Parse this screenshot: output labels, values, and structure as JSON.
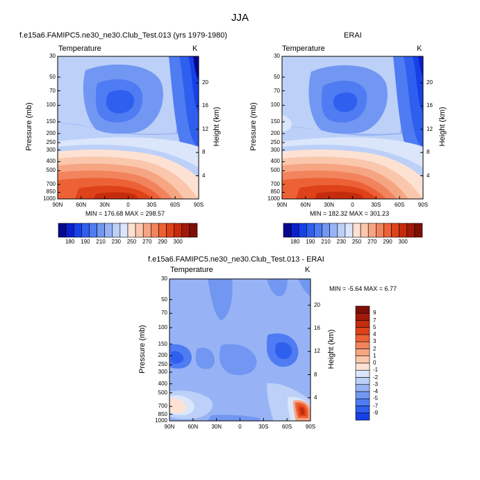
{
  "title": "JJA",
  "colors": {
    "cool_scale": [
      "#08088f",
      "#0a1fcf",
      "#1740e6",
      "#2f5fef",
      "#4f7cf2",
      "#7297f2",
      "#98b3f5",
      "#bcd0f8",
      "#dbe6fb"
    ],
    "warm_scale": [
      "#fde2d3",
      "#fac7ad",
      "#f6a583",
      "#f2845d",
      "#ec6236",
      "#df4218",
      "#c42c0d",
      "#a31a0a",
      "#7e0f08"
    ]
  },
  "chart_data": [
    {
      "type": "heatmap",
      "title": "f.e15a6.FAMIPC5.ne30_ne30.Club_Test.013 (yrs 1979-1980)",
      "variable": "Temperature",
      "units": "K",
      "xlabel": "",
      "ylabel": "Pressure (mb)",
      "y2label": "Height (km)",
      "x_ticks": [
        "90N",
        "60N",
        "30N",
        "0",
        "30S",
        "60S",
        "90S"
      ],
      "y_ticks": [
        "30",
        "50",
        "70",
        "100",
        "150",
        "200",
        "250",
        "300",
        "400",
        "500",
        "700",
        "850",
        "1000"
      ],
      "y_tick_values": [
        30,
        50,
        70,
        100,
        150,
        200,
        250,
        300,
        400,
        500,
        700,
        850,
        1000
      ],
      "y2_ticks": [
        "20",
        "16",
        "12",
        "8",
        "4"
      ],
      "ylim": [
        30,
        1000
      ],
      "stats": "MIN = 176.68   MAX = 298.57",
      "min": 176.68,
      "max": 298.57,
      "colorbar_labels": [
        "180",
        "190",
        "210",
        "230",
        "250",
        "270",
        "290",
        "300"
      ]
    },
    {
      "type": "heatmap",
      "title": "ERAI",
      "variable": "Temperature",
      "units": "K",
      "xlabel": "",
      "ylabel": "Pressure (mb)",
      "y2label": "Height (km)",
      "x_ticks": [
        "90N",
        "60N",
        "30N",
        "0",
        "30S",
        "60S",
        "90S"
      ],
      "y_ticks": [
        "30",
        "50",
        "70",
        "100",
        "150",
        "200",
        "250",
        "300",
        "400",
        "500",
        "700",
        "850",
        "1000"
      ],
      "y_tick_values": [
        30,
        50,
        70,
        100,
        150,
        200,
        250,
        300,
        400,
        500,
        700,
        850,
        1000
      ],
      "y2_ticks": [
        "20",
        "16",
        "12",
        "8",
        "4"
      ],
      "ylim": [
        30,
        1000
      ],
      "stats": "MIN = 182.32   MAX = 301.23",
      "min": 182.32,
      "max": 301.23,
      "colorbar_labels": [
        "180",
        "190",
        "210",
        "230",
        "250",
        "270",
        "290",
        "300"
      ]
    },
    {
      "type": "heatmap",
      "title": "f.e15a6.FAMIPC5.ne30_ne30.Club_Test.013 - ERAI",
      "variable": "Temperature",
      "units": "K",
      "xlabel": "",
      "ylabel": "Pressure (mb)",
      "y2label": "Height (km)",
      "x_ticks": [
        "90N",
        "60N",
        "30N",
        "0",
        "30S",
        "60S",
        "90S"
      ],
      "y_ticks": [
        "30",
        "50",
        "70",
        "100",
        "150",
        "200",
        "250",
        "300",
        "400",
        "500",
        "700",
        "850",
        "1000"
      ],
      "y_tick_values": [
        30,
        50,
        70,
        100,
        150,
        200,
        250,
        300,
        400,
        500,
        700,
        850,
        1000
      ],
      "y2_ticks": [
        "20",
        "16",
        "12",
        "8",
        "4"
      ],
      "ylim": [
        30,
        1000
      ],
      "stats": "MIN =  -5.64   MAX =   6.77",
      "min": -5.64,
      "max": 6.77,
      "colorbar_labels": [
        "9",
        "7",
        "5",
        "4",
        "3",
        "2",
        "1",
        "0",
        "-1",
        "-2",
        "-3",
        "-4",
        "-5",
        "-7",
        "-9"
      ]
    }
  ]
}
